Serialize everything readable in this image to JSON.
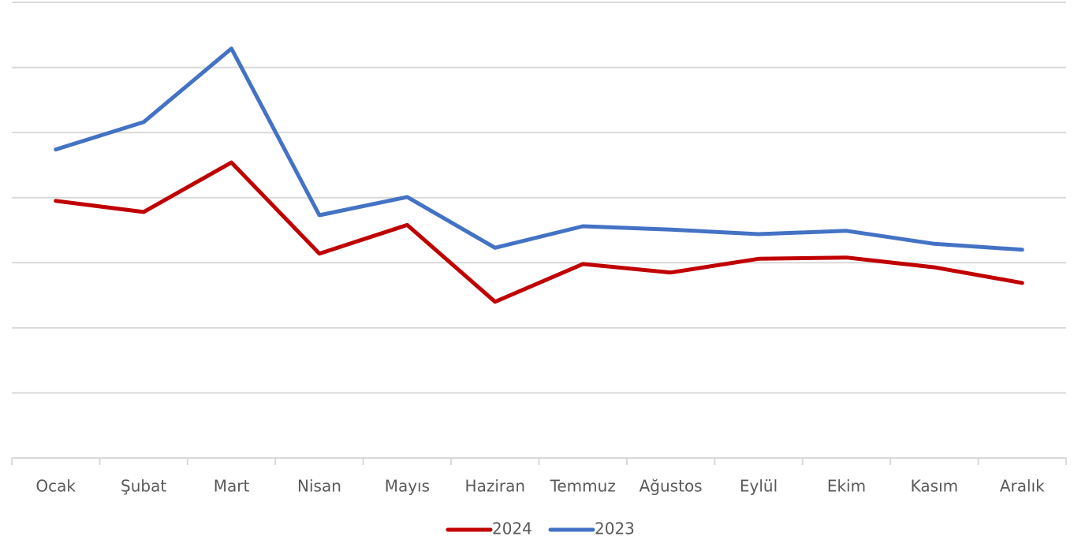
{
  "chart_data": {
    "type": "line",
    "categories": [
      "Ocak",
      "Şubat",
      "Mart",
      "Nisan",
      "Mayıs",
      "Haziran",
      "Temmuz",
      "Ağustos",
      "Eylül",
      "Ekim",
      "Kasım",
      "Aralık"
    ],
    "series": [
      {
        "name": "2024",
        "color": "#c00000",
        "values": [
          3.95,
          3.78,
          4.54,
          3.14,
          3.58,
          2.4,
          2.98,
          2.85,
          3.06,
          3.08,
          2.93,
          2.69
        ]
      },
      {
        "name": "2023",
        "color": "#4472c4",
        "values": [
          4.74,
          5.16,
          6.29,
          3.73,
          4.01,
          3.23,
          3.56,
          3.51,
          3.44,
          3.49,
          3.29,
          3.2
        ]
      }
    ],
    "ylim": [
      0,
      7
    ],
    "yticks": [
      0,
      1,
      2,
      3,
      4,
      5,
      6,
      7
    ],
    "grid": true,
    "legend": "bottom"
  }
}
